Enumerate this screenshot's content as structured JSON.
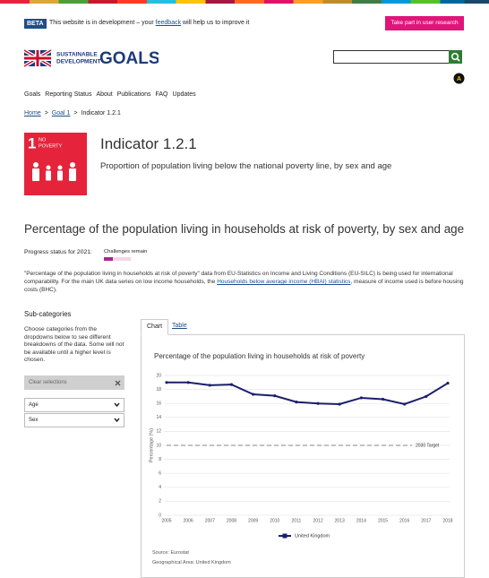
{
  "banner": {
    "badge": "BETA",
    "text_before": "This website is in development – your ",
    "link": "feedback",
    "text_after": " will help us to improve it",
    "button": "Take part in user research"
  },
  "logo": {
    "line1": "SUSTAINABLE",
    "line2": "DEVELOPMENT",
    "word": "GOALS"
  },
  "accessibility_badge": "A",
  "nav": [
    "Goals",
    "Reporting Status",
    "About",
    "Publications",
    "FAQ",
    "Updates"
  ],
  "breadcrumb": {
    "items": [
      "Home",
      "Goal 1",
      "Indicator 1.2.1"
    ],
    "separator": ">"
  },
  "goal_tile": {
    "number": "1",
    "label_lines": [
      "NO",
      "POVERTY"
    ]
  },
  "indicator": {
    "title": "Indicator 1.2.1",
    "subtitle": "Proportion of population living below the national poverty line, by sex and age"
  },
  "heading": "Percentage of the population living in households at risk of poverty, by sex and age",
  "progress": {
    "label": "Progress status for 2021:",
    "status": "Challenges remain"
  },
  "description": {
    "text_before": "\"Percentage of the population living in households at risk of poverty\" data from EU-Statistics on Income and Living Conditions (EU-SILC) is being used for international comparability. For the main UK data series on low income households, the ",
    "link": "Households below average income (HBAI) statistics",
    "text_after": ", measure of income used is before housing costs (BHC)."
  },
  "subcategories": {
    "title": "Sub-categories",
    "help": "Choose categories from the dropdowns below to see different breakdowns of the data. Some will not be available until a higher level is chosen.",
    "clear": "Clear selections",
    "selects": [
      "Age",
      "Sex"
    ]
  },
  "tabs": [
    "Chart",
    "Table"
  ],
  "chart_data": {
    "type": "line",
    "title": "Percentage of the population living in households at risk of poverty",
    "y_label": "Percentage (%)",
    "categories": [
      "2005",
      "2006",
      "2007",
      "2008",
      "2009",
      "2010",
      "2011",
      "2012",
      "2013",
      "2014",
      "2015",
      "2016",
      "2017",
      "2018"
    ],
    "series": [
      {
        "name": "United Kingdom",
        "color": "#1a1f6b",
        "values": [
          19.0,
          19.0,
          18.6,
          18.7,
          17.3,
          17.1,
          16.2,
          16.0,
          15.9,
          16.8,
          16.6,
          15.9,
          17.0,
          18.9
        ]
      }
    ],
    "target": {
      "value": 10,
      "label": "2030 Target",
      "color": "#9e9e9e"
    },
    "ylim": [
      0,
      20
    ],
    "yticks": [
      0,
      2,
      4,
      6,
      8,
      10,
      12,
      14,
      16,
      18,
      20
    ],
    "grid": true,
    "legend": "bottom"
  },
  "source": "Source: Eurostat",
  "geographical_area": "Geographical Area: United Kingdom"
}
